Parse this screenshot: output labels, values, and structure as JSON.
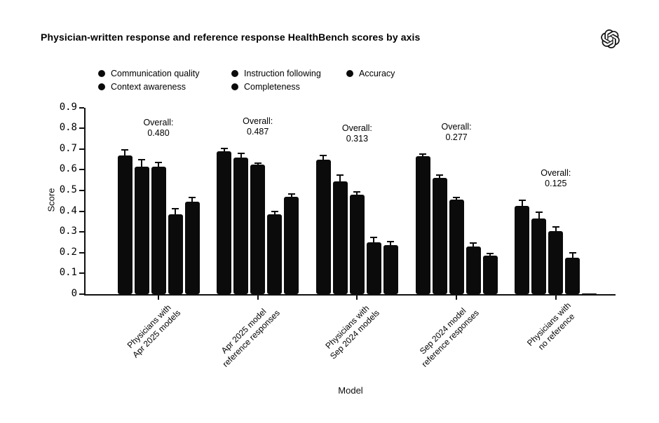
{
  "title": "Physician-written response and reference response HealthBench scores by axis",
  "logo": {
    "name": "openai-logo"
  },
  "chart_data": {
    "type": "bar",
    "title": "Physician-written response and reference response HealthBench scores by axis",
    "xlabel": "Model",
    "ylabel": "Score",
    "ylim": [
      0,
      0.9
    ],
    "ytick_labels": [
      "0",
      "0.1",
      "0.2",
      "0.3",
      "0.4",
      "0.5",
      "0.6",
      "0.7",
      "0.8",
      "0.9"
    ],
    "grid": false,
    "legend_position": "top-left",
    "bar_color": "#0b0b0b",
    "categories": [
      "Physicians with\nApr 2025 models",
      "Apr 2025 model\nreference responses",
      "Physicians with\nSep 2024 models",
      "Sep 2024 model\nreference responses",
      "Physicians with\nno reference"
    ],
    "series": [
      {
        "name": "Communication quality",
        "values": [
          0.67,
          0.69,
          0.65,
          0.665,
          0.425
        ],
        "errors": [
          0.025,
          0.012,
          0.018,
          0.012,
          0.028
        ]
      },
      {
        "name": "Instruction following",
        "values": [
          0.615,
          0.66,
          0.545,
          0.56,
          0.365
        ],
        "errors": [
          0.035,
          0.018,
          0.03,
          0.015,
          0.03
        ]
      },
      {
        "name": "Accuracy",
        "values": [
          0.615,
          0.625,
          0.48,
          0.455,
          0.305
        ],
        "errors": [
          0.02,
          0.008,
          0.013,
          0.01,
          0.02
        ]
      },
      {
        "name": "Context awareness",
        "values": [
          0.385,
          0.385,
          0.25,
          0.23,
          0.175
        ],
        "errors": [
          0.026,
          0.015,
          0.024,
          0.015,
          0.025
        ]
      },
      {
        "name": "Completeness",
        "values": [
          0.445,
          0.47,
          0.235,
          0.185,
          0.005
        ],
        "errors": [
          0.02,
          0.012,
          0.018,
          0.01,
          0.002
        ]
      }
    ],
    "overall_annotations": [
      {
        "label": "Overall:",
        "value": "0.480"
      },
      {
        "label": "Overall:",
        "value": "0.487"
      },
      {
        "label": "Overall:",
        "value": "0.313"
      },
      {
        "label": "Overall:",
        "value": "0.277"
      },
      {
        "label": "Overall:",
        "value": "0.125"
      }
    ]
  }
}
